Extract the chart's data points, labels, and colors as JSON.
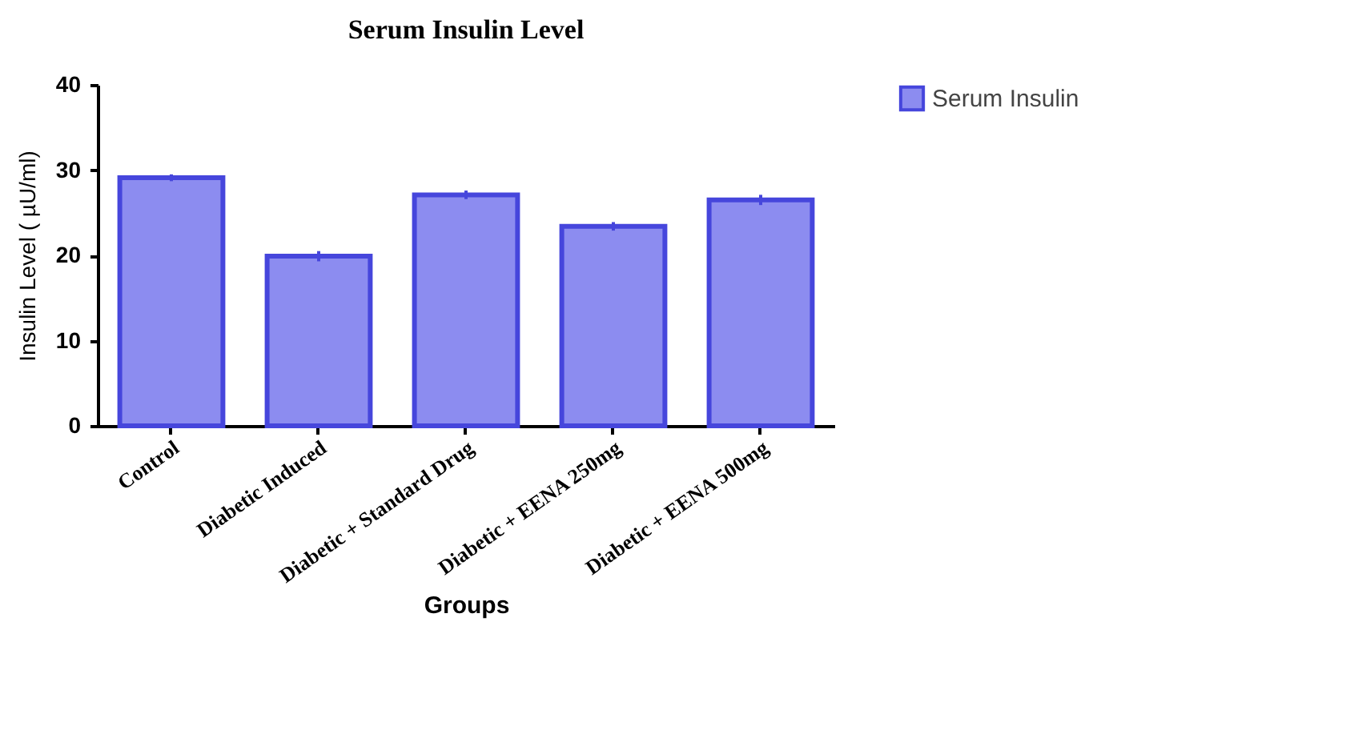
{
  "chart_data": {
    "type": "bar",
    "title": "Serum Insulin Level",
    "xlabel": "Groups",
    "ylabel": "Insulin Level ( µU/ml)",
    "categories": [
      "Control",
      "Diabetic Induced",
      "Diabetic + Standard Drug",
      "Diabetic + EENA 250mg",
      "Diabetic + EENA 500mg"
    ],
    "series": [
      {
        "name": "Serum Insulin",
        "color": "#8c8cf0",
        "values": [
          29.1,
          19.9,
          27.1,
          23.4,
          26.5
        ],
        "errors": [
          0.4,
          0.6,
          0.5,
          0.5,
          0.6
        ]
      }
    ],
    "ylim": [
      0,
      40
    ],
    "yticks": [
      0,
      10,
      20,
      30,
      40
    ],
    "grid": false,
    "legend": "top right"
  }
}
